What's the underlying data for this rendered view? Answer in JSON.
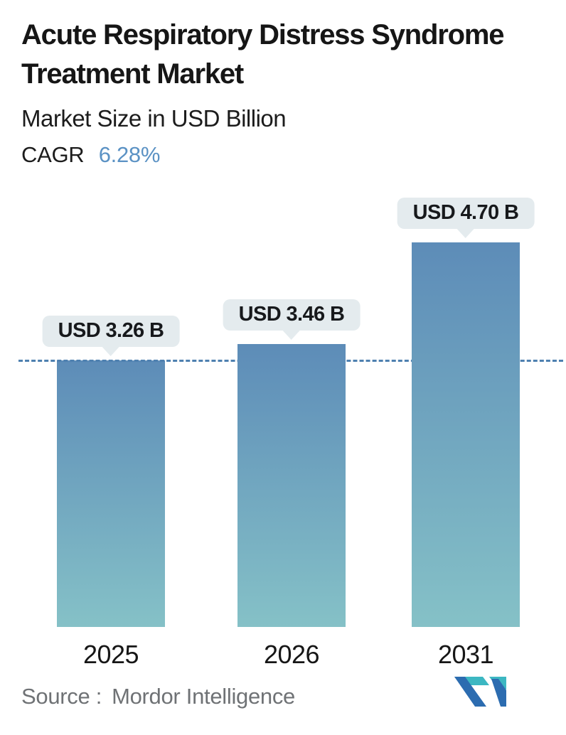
{
  "header": {
    "title_lines": [
      "Acute Respiratory Distress Syndrome",
      "Treatment Market"
    ],
    "subtitle": "Market Size in USD Billion",
    "cagr_label": "CAGR",
    "cagr_value": "6.28%"
  },
  "chart_data": {
    "type": "bar",
    "title": "Acute Respiratory Distress Syndrome Treatment Market",
    "subtitle": "Market Size in USD Billion",
    "cagr": "6.28%",
    "categories": [
      "2025",
      "2026",
      "2031"
    ],
    "values": [
      3.26,
      3.46,
      4.7
    ],
    "value_labels": [
      "USD 3.26 B",
      "USD 3.46 B",
      "USD 4.70 B"
    ],
    "unit": "USD Billion",
    "xlabel": "",
    "ylabel": "",
    "grid": false,
    "legend_position": "none",
    "reference_line": {
      "style": "dashed",
      "value": 3.26
    },
    "ylim": [
      0,
      5.3
    ]
  },
  "footer": {
    "source_label": "Source :",
    "source_value": "Mordor Intelligence",
    "logo": "mordor-intelligence-logo"
  },
  "colors": {
    "title_text": "#161616",
    "cagr_value_blue": "#5b92c4",
    "bar_gradient_top": "#5d8cb8",
    "bar_gradient_bottom": "#85c1c7",
    "tooltip_bg": "#e4ebee",
    "dashed_line": "#4e80b0",
    "source_text": "#6f7275",
    "logo_blue": "#2c6cb0",
    "logo_teal": "#3cb7c2"
  }
}
